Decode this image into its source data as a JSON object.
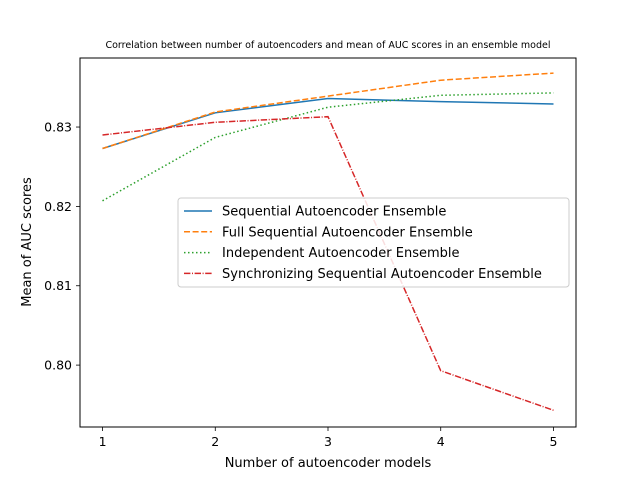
{
  "chart_data": {
    "type": "line",
    "title": "Correlation between number of autoencoders and mean of AUC scores in an ensemble model",
    "xlabel": "Number of autoencoder models",
    "ylabel": "Mean of AUC scores",
    "x": [
      1,
      2,
      3,
      4,
      5
    ],
    "xticks": [
      1,
      2,
      3,
      4,
      5
    ],
    "xtick_labels": [
      "1",
      "2",
      "3",
      "4",
      "5"
    ],
    "yticks": [
      0.8,
      0.81,
      0.82,
      0.83
    ],
    "ytick_labels": [
      "0.80",
      "0.81",
      "0.82",
      "0.83"
    ],
    "xlim": [
      0.8,
      5.2
    ],
    "ylim": [
      0.7922,
      0.8387
    ],
    "grid": false,
    "legend_position": "center-right",
    "series": [
      {
        "name": "Sequential Autoencoder Ensemble",
        "values": [
          0.8273,
          0.8318,
          0.8336,
          0.8332,
          0.8329
        ],
        "color": "#1f77b4",
        "style": "solid"
      },
      {
        "name": "Full Sequential Autoencoder Ensemble",
        "values": [
          0.8273,
          0.8319,
          0.8339,
          0.8359,
          0.8368
        ],
        "color": "#ff7f0e",
        "style": "dashed"
      },
      {
        "name": "Independent Autoencoder Ensemble",
        "values": [
          0.8207,
          0.8287,
          0.8325,
          0.834,
          0.8343
        ],
        "color": "#2ca02c",
        "style": "dotted"
      },
      {
        "name": "Synchronizing Sequential Autoencoder Ensemble",
        "values": [
          0.829,
          0.8306,
          0.8313,
          0.7993,
          0.7943
        ],
        "color": "#d62728",
        "style": "dashdot"
      }
    ]
  }
}
